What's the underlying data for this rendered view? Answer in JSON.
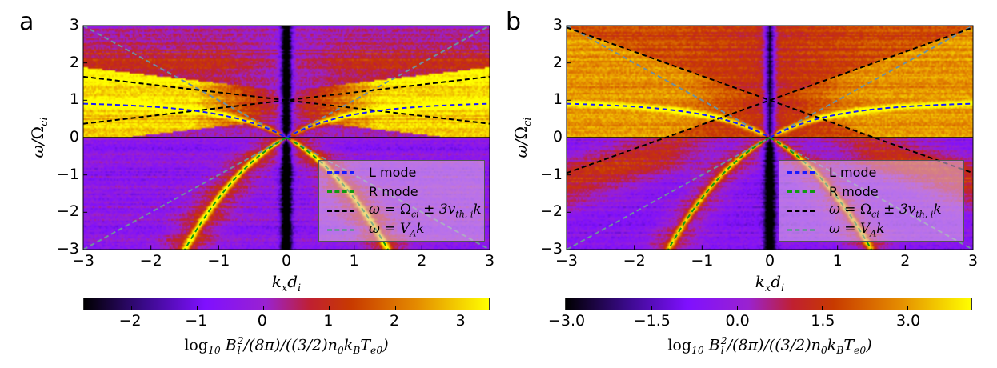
{
  "panels": [
    {
      "label": "a",
      "xlabel": [
        {
          "t": "k"
        },
        {
          "sub": "x"
        },
        {
          "t": "d"
        },
        {
          "sub": "i"
        }
      ],
      "ylabel": [
        {
          "t": "ω/"
        },
        {
          "up": "Ω"
        },
        {
          "sub": "ci"
        }
      ],
      "x_ticks": [
        "−3",
        "−2",
        "−1",
        "0",
        "1",
        "2",
        "3"
      ],
      "y_ticks": [
        "3",
        "2",
        "1",
        "0",
        "−1",
        "−2",
        "−3"
      ],
      "colorbar": {
        "range": [
          -2.71,
          3.44
        ],
        "ticks": [
          {
            "v": -2,
            "label": "−2"
          },
          {
            "v": -1,
            "label": "−1"
          },
          {
            "v": 0,
            "label": "0"
          },
          {
            "v": 1,
            "label": "1"
          },
          {
            "v": 2,
            "label": "2"
          },
          {
            "v": 3,
            "label": "3"
          }
        ],
        "label": [
          {
            "t": "log",
            "up": true
          },
          {
            "sub": "10"
          },
          {
            "t": " B"
          },
          {
            "subsup": [
              "l",
              "2"
            ]
          },
          {
            "t": "/(8π)/((3/2)n"
          },
          {
            "sub": "0"
          },
          {
            "t": "k"
          },
          {
            "sub": "B"
          },
          {
            "t": "T"
          },
          {
            "sub": "e0"
          },
          {
            "t": ")"
          }
        ]
      },
      "thermal_slope_3vth": 0.21
    },
    {
      "label": "b",
      "xlabel": [
        {
          "t": "k"
        },
        {
          "sub": "x"
        },
        {
          "t": "d"
        },
        {
          "sub": "i"
        }
      ],
      "ylabel": [
        {
          "t": "ω/"
        },
        {
          "up": "Ω"
        },
        {
          "sub": "ci"
        }
      ],
      "x_ticks": [
        "−3",
        "−2",
        "−1",
        "0",
        "1",
        "2",
        "3"
      ],
      "y_ticks": [
        "3",
        "2",
        "1",
        "0",
        "−1",
        "−2",
        "−3"
      ],
      "colorbar": {
        "range": [
          -3.0,
          4.15
        ],
        "ticks": [
          {
            "v": -3,
            "label": "−3.0"
          },
          {
            "v": -1.5,
            "label": "−1.5"
          },
          {
            "v": 0,
            "label": "0.0"
          },
          {
            "v": 1.5,
            "label": "1.5"
          },
          {
            "v": 3,
            "label": "3.0"
          }
        ],
        "label": [
          {
            "t": "log",
            "up": true
          },
          {
            "sub": "10"
          },
          {
            "t": " B"
          },
          {
            "subsup": [
              "l",
              "2"
            ]
          },
          {
            "t": "/(8π)/((3/2)n"
          },
          {
            "sub": "0"
          },
          {
            "t": "k"
          },
          {
            "sub": "B"
          },
          {
            "t": "T"
          },
          {
            "sub": "e0"
          },
          {
            "t": ")"
          }
        ]
      },
      "thermal_slope_3vth": 0.65
    }
  ],
  "legend": [
    {
      "label": [
        {
          "t": "L mode",
          "up": true
        }
      ],
      "color": "#1a1aff"
    },
    {
      "label": [
        {
          "t": "R mode",
          "up": true
        }
      ],
      "color": "#119911"
    },
    {
      "label": [
        {
          "t": "ω = "
        },
        {
          "up": "Ω"
        },
        {
          "sub": "ci"
        },
        {
          "t": " ± 3v"
        },
        {
          "sub": "th, i"
        },
        {
          "t": "k"
        }
      ],
      "color": "#000000"
    },
    {
      "label": [
        {
          "t": "ω = V"
        },
        {
          "sub": "A"
        },
        {
          "t": "k"
        }
      ],
      "color": "#6f8f9f"
    }
  ],
  "chart_data": [
    {
      "type": "heatmap",
      "panel": "a",
      "xlabel": "k_x d_i",
      "ylabel": "ω/Ω_ci",
      "xlim": [
        -3,
        3
      ],
      "ylim": [
        -3,
        3
      ],
      "colorbar_label": "log10 B_l^2/(8π)/((3/2)n0 kB Te0)",
      "colorbar_range": [
        -2.71,
        3.44
      ],
      "colormap": [
        "#000000",
        "#3a0a8a",
        "#7f10ff",
        "#9a22d0",
        "#c02030",
        "#c83a00",
        "#e48a00",
        "#ffff00"
      ],
      "series": [
        {
          "name": "L mode",
          "style": "dashed",
          "relation": "k^2 = ω^2/(1-ω), ω>0"
        },
        {
          "name": "R mode",
          "style": "dashed",
          "relation": "k^2 = ω^2/(1+|ω|), ω<0"
        },
        {
          "name": "ω = Ω_ci ± 3v_th,i k",
          "style": "dashed",
          "slope": 0.21,
          "intercept": 1
        },
        {
          "name": "ω = V_A k",
          "style": "dashed",
          "slope": 1,
          "intercept": 0
        }
      ],
      "legend_position": "lower-right"
    },
    {
      "type": "heatmap",
      "panel": "b",
      "xlabel": "k_x d_i",
      "ylabel": "ω/Ω_ci",
      "xlim": [
        -3,
        3
      ],
      "ylim": [
        -3,
        3
      ],
      "colorbar_label": "log10 B_l^2/(8π)/((3/2)n0 kB Te0)",
      "colorbar_range": [
        -3.0,
        4.15
      ],
      "colormap": [
        "#000000",
        "#3a0a8a",
        "#7f10ff",
        "#9a22d0",
        "#c02030",
        "#c83a00",
        "#e48a00",
        "#ffff00"
      ],
      "series": [
        {
          "name": "L mode",
          "style": "dashed",
          "relation": "k^2 = ω^2/(1-ω), ω>0"
        },
        {
          "name": "R mode",
          "style": "dashed",
          "relation": "k^2 = ω^2/(1+|ω|), ω<0"
        },
        {
          "name": "ω = Ω_ci ± 3v_th,i k",
          "style": "dashed",
          "slope": 0.65,
          "intercept": 1
        },
        {
          "name": "ω = V_A k",
          "style": "dashed",
          "slope": 1,
          "intercept": 0
        }
      ],
      "legend_position": "lower-right"
    }
  ]
}
